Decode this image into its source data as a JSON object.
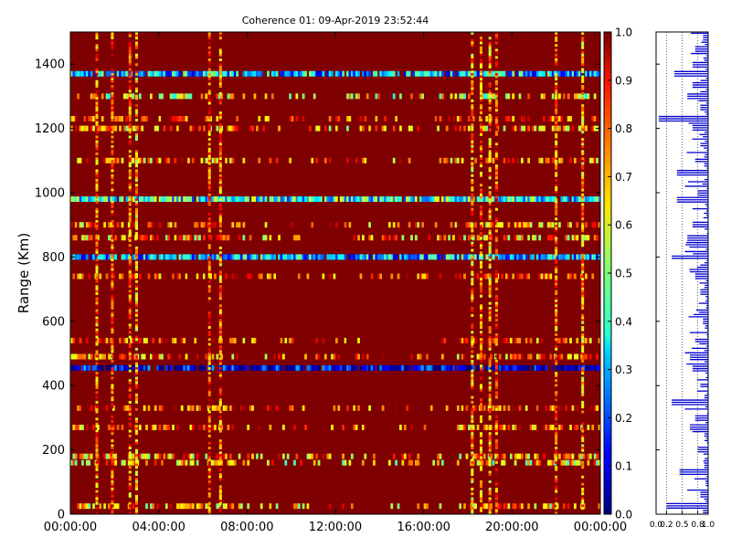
{
  "chart_data": [
    {
      "type": "heatmap",
      "title": "Coherence 01: 09-Apr-2019 23:52:44",
      "xlabel": "",
      "ylabel": "Range (Km)",
      "xlim": [
        "00:00:00",
        "24:00:00"
      ],
      "ylim": [
        0,
        1500
      ],
      "x_ticks": [
        "00:00:00",
        "04:00:00",
        "08:00:00",
        "12:00:00",
        "16:00:00",
        "20:00:00",
        "00:00:00"
      ],
      "y_ticks": [
        0,
        200,
        400,
        600,
        800,
        1000,
        1200,
        1400
      ],
      "colormap": "jet",
      "colorbar": {
        "range": [
          0.0,
          1.0
        ],
        "ticks": [
          "0.0",
          "0.1",
          "0.2",
          "0.3",
          "0.4",
          "0.5",
          "0.6",
          "0.7",
          "0.8",
          "0.9",
          "1.0"
        ]
      },
      "background_value": 1.0,
      "horizontal_bands": [
        {
          "range_km": 1370,
          "value": 0.3
        },
        {
          "range_km": 1300,
          "value": 0.6
        },
        {
          "range_km": 1230,
          "value": 0.85
        },
        {
          "range_km": 1200,
          "value": 0.7
        },
        {
          "range_km": 1100,
          "value": 0.75
        },
        {
          "range_km": 980,
          "value": 0.4
        },
        {
          "range_km": 900,
          "value": 0.75
        },
        {
          "range_km": 860,
          "value": 0.7
        },
        {
          "range_km": 800,
          "value": 0.3
        },
        {
          "range_km": 740,
          "value": 0.8
        },
        {
          "range_km": 540,
          "value": 0.8
        },
        {
          "range_km": 490,
          "value": 0.75
        },
        {
          "range_km": 455,
          "value": 0.08
        },
        {
          "range_km": 330,
          "value": 0.8
        },
        {
          "range_km": 270,
          "value": 0.75
        },
        {
          "range_km": 180,
          "value": 0.7
        },
        {
          "range_km": 160,
          "value": 0.65
        },
        {
          "range_km": 25,
          "value": 0.7
        }
      ],
      "vertical_bands": [
        {
          "time_h": 1.2,
          "value": 0.75
        },
        {
          "time_h": 1.9,
          "value": 0.8
        },
        {
          "time_h": 2.7,
          "value": 0.75
        },
        {
          "time_h": 3.0,
          "value": 0.7
        },
        {
          "time_h": 6.3,
          "value": 0.8
        },
        {
          "time_h": 6.8,
          "value": 0.75
        },
        {
          "time_h": 18.2,
          "value": 0.7
        },
        {
          "time_h": 18.6,
          "value": 0.75
        },
        {
          "time_h": 19.0,
          "value": 0.7
        },
        {
          "time_h": 19.3,
          "value": 0.8
        },
        {
          "time_h": 22.0,
          "value": 0.75
        },
        {
          "time_h": 23.2,
          "value": 0.7
        }
      ]
    },
    {
      "type": "line",
      "title": "",
      "xlabel": "",
      "ylabel": "",
      "xlim": [
        0.0,
        1.0
      ],
      "ylim": [
        0,
        1500
      ],
      "x_ticks": [
        "0.0",
        "0.2",
        "0.5",
        "0.8",
        "1.0"
      ],
      "profile": [
        {
          "range_km": 1480,
          "value": 0.9
        },
        {
          "range_km": 1445,
          "value": 0.75
        },
        {
          "range_km": 1400,
          "value": 0.7
        },
        {
          "range_km": 1370,
          "value": 0.35
        },
        {
          "range_km": 1335,
          "value": 0.7
        },
        {
          "range_km": 1300,
          "value": 0.6
        },
        {
          "range_km": 1265,
          "value": 0.85
        },
        {
          "range_km": 1230,
          "value": 0.05
        },
        {
          "range_km": 1200,
          "value": 0.7
        },
        {
          "range_km": 1150,
          "value": 0.85
        },
        {
          "range_km": 1100,
          "value": 0.75
        },
        {
          "range_km": 1060,
          "value": 0.4
        },
        {
          "range_km": 1000,
          "value": 0.8
        },
        {
          "range_km": 980,
          "value": 0.4
        },
        {
          "range_km": 900,
          "value": 0.7
        },
        {
          "range_km": 860,
          "value": 0.6
        },
        {
          "range_km": 800,
          "value": 0.3
        },
        {
          "range_km": 740,
          "value": 0.75
        },
        {
          "range_km": 690,
          "value": 0.85
        },
        {
          "range_km": 600,
          "value": 0.9
        },
        {
          "range_km": 540,
          "value": 0.75
        },
        {
          "range_km": 490,
          "value": 0.65
        },
        {
          "range_km": 455,
          "value": 0.7
        },
        {
          "range_km": 400,
          "value": 0.85
        },
        {
          "range_km": 350,
          "value": 0.3
        },
        {
          "range_km": 300,
          "value": 0.75
        },
        {
          "range_km": 270,
          "value": 0.65
        },
        {
          "range_km": 200,
          "value": 0.8
        },
        {
          "range_km": 130,
          "value": 0.45
        },
        {
          "range_km": 60,
          "value": 0.85
        },
        {
          "range_km": 25,
          "value": 0.2
        },
        {
          "range_km": 5,
          "value": 0.9
        }
      ]
    }
  ]
}
